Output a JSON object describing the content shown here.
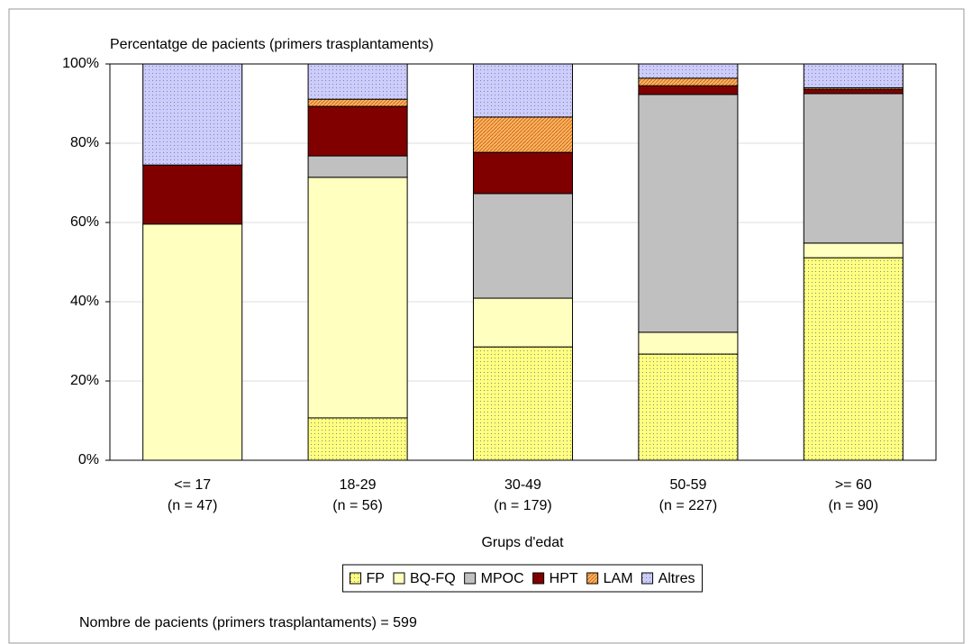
{
  "chart_data": {
    "type": "stacked_bar",
    "y_axis_title": "Percentatge de pacients (primers trasplantaments)",
    "x_axis_title": "Grups d'edat",
    "footnote": "Nombre de pacients (primers trasplantaments) = 599",
    "categories": [
      "<= 17",
      "18-29",
      "30-49",
      "50-59",
      ">= 60"
    ],
    "category_counts": [
      "(n = 47)",
      "(n = 56)",
      "(n = 179)",
      "(n = 227)",
      "(n = 90)"
    ],
    "series": [
      {
        "name": "FP",
        "color": "#ffff80",
        "pattern": "dots",
        "values": [
          0,
          10.7,
          28.6,
          26.8,
          51.1
        ]
      },
      {
        "name": "BQ-FQ",
        "color": "#ffffc0",
        "values": [
          59.6,
          60.7,
          12.3,
          5.5,
          3.7
        ]
      },
      {
        "name": "MPOC",
        "color": "#c0c0c0",
        "values": [
          0,
          5.4,
          26.4,
          60,
          37.7
        ]
      },
      {
        "name": "HPT",
        "color": "#800000",
        "values": [
          14.9,
          12.5,
          10.4,
          2.2,
          1.1
        ]
      },
      {
        "name": "LAM",
        "color": "#ffb366",
        "pattern": "hatch",
        "values": [
          0,
          1.8,
          8.9,
          1.9,
          0.4
        ]
      },
      {
        "name": "Altres",
        "color": "#ccccff",
        "pattern": "dots",
        "values": [
          25.5,
          8.9,
          13.4,
          3.6,
          6.0
        ]
      }
    ],
    "ylim": [
      0,
      100
    ],
    "yticks": [
      {
        "value": 0,
        "label": "0%"
      },
      {
        "value": 20,
        "label": "20%"
      },
      {
        "value": 40,
        "label": "40%"
      },
      {
        "value": 60,
        "label": "60%"
      },
      {
        "value": 80,
        "label": "80%"
      },
      {
        "value": 100,
        "label": "100%"
      }
    ],
    "grid": true,
    "legend": "bottom"
  }
}
